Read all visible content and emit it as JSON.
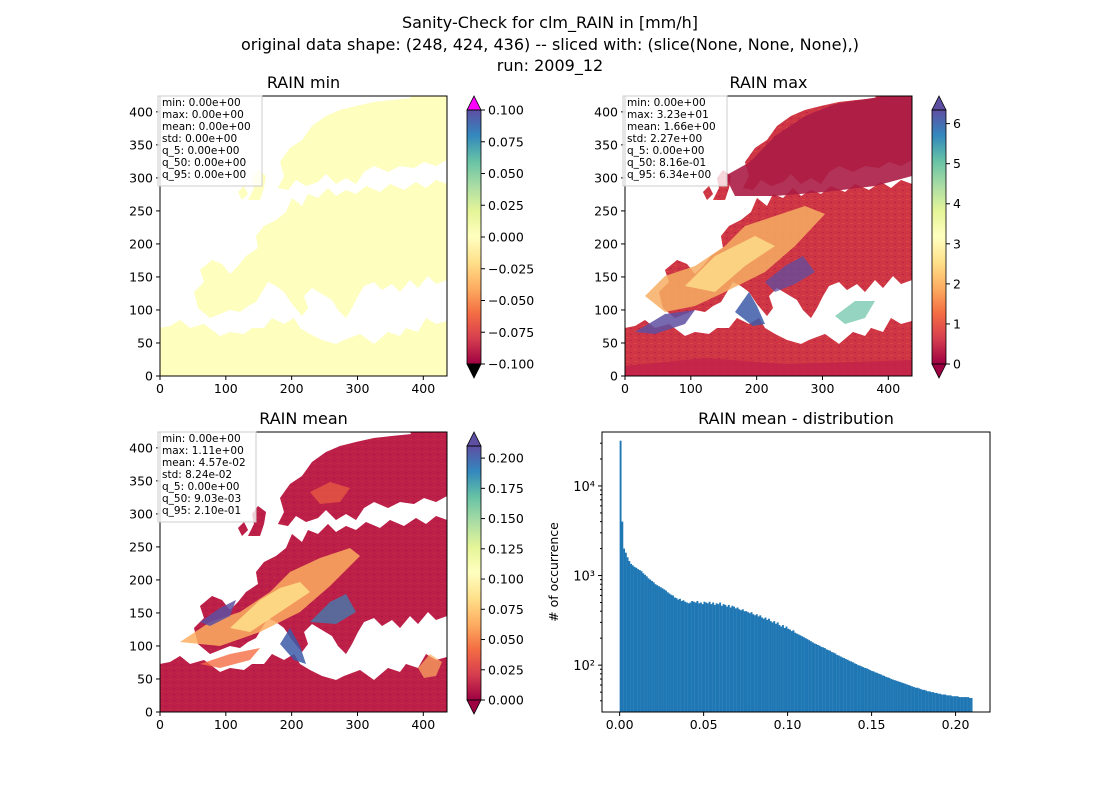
{
  "figure": {
    "suptitle_lines": [
      "Sanity-Check for clm_RAIN in [mm/h]",
      "original data shape: (248, 424, 436) -- sliced with: (slice(None, None, None),)",
      "run: 2009_12"
    ]
  },
  "chart_data": [
    {
      "type": "heatmap",
      "title": "RAIN min",
      "xlim": [
        0,
        436
      ],
      "ylim": [
        0,
        424
      ],
      "xticks": [
        0,
        100,
        200,
        300,
        400
      ],
      "yticks": [
        0,
        50,
        100,
        150,
        200,
        250,
        300,
        350,
        400
      ],
      "colormap": "Spectral",
      "uniform_color": "#fefebe",
      "stats": [
        "min: 0.00e+00",
        "max: 0.00e+00",
        "mean: 0.00e+00",
        "std: 0.00e+00",
        "q_5: 0.00e+00",
        "q_50: 0.00e+00",
        "q_95: 0.00e+00"
      ],
      "colorbar": {
        "range": [
          -0.1,
          0.1
        ],
        "ticks": [
          -0.1,
          -0.075,
          -0.05,
          -0.025,
          0.0,
          0.025,
          0.05,
          0.075,
          0.1
        ],
        "tick_labels": [
          "−0.100",
          "−0.075",
          "−0.050",
          "−0.025",
          "0.000",
          "0.025",
          "0.050",
          "0.075",
          "0.100"
        ],
        "extend_colors": {
          "over": "#ff00ff",
          "under": "#000000"
        }
      }
    },
    {
      "type": "heatmap",
      "title": "RAIN max",
      "xlim": [
        0,
        436
      ],
      "ylim": [
        0,
        424
      ],
      "xticks": [
        0,
        100,
        200,
        300,
        400
      ],
      "yticks": [
        0,
        50,
        100,
        150,
        200,
        250,
        300,
        350,
        400
      ],
      "colormap": "Spectral",
      "stats": [
        "min: 0.00e+00",
        "max: 3.23e+01",
        "mean: 1.66e+00",
        "std: 2.27e+00",
        "q_5: 0.00e+00",
        "q_50: 8.16e-01",
        "q_95: 6.34e+00"
      ],
      "colorbar": {
        "range": [
          0,
          6.34
        ],
        "ticks": [
          0,
          1,
          2,
          3,
          4,
          5,
          6
        ],
        "tick_labels": [
          "0",
          "1",
          "2",
          "3",
          "4",
          "5",
          "6"
        ],
        "extend_colors": {
          "over": "#5e4fa2",
          "under": "#9e0142"
        }
      }
    },
    {
      "type": "heatmap",
      "title": "RAIN mean",
      "xlim": [
        0,
        436
      ],
      "ylim": [
        0,
        424
      ],
      "xticks": [
        0,
        100,
        200,
        300,
        400
      ],
      "yticks": [
        0,
        50,
        100,
        150,
        200,
        250,
        300,
        350,
        400
      ],
      "colormap": "Spectral",
      "stats": [
        "min: 0.00e+00",
        "max: 1.11e+00",
        "mean: 4.57e-02",
        "std: 8.24e-02",
        "q_5: 0.00e+00",
        "q_50: 9.03e-03",
        "q_95: 2.10e-01"
      ],
      "colorbar": {
        "range": [
          0,
          0.21
        ],
        "ticks": [
          0.0,
          0.025,
          0.05,
          0.075,
          0.1,
          0.125,
          0.15,
          0.175,
          0.2
        ],
        "tick_labels": [
          "0.000",
          "0.025",
          "0.050",
          "0.075",
          "0.100",
          "0.125",
          "0.150",
          "0.175",
          "0.200"
        ],
        "extend_colors": {
          "over": "#5e4fa2",
          "under": "#9e0142"
        }
      }
    },
    {
      "type": "bar",
      "title": "RAIN mean - distribution",
      "ylabel": "# of occurrence",
      "yscale": "log",
      "xlim": [
        -0.0105,
        0.2205
      ],
      "ylim": [
        30,
        40000
      ],
      "xticks": [
        0.0,
        0.05,
        0.1,
        0.15,
        0.2
      ],
      "xtick_labels": [
        "0.00",
        "0.05",
        "0.10",
        "0.15",
        "0.20"
      ],
      "yticks": [
        100,
        1000,
        10000
      ],
      "ytick_labels": [
        "10²",
        "10³",
        "10⁴"
      ],
      "bar_color": "#1f77b4",
      "bin_range": [
        0,
        0.21
      ],
      "bins": 200,
      "values": [
        32000,
        4000,
        2000,
        1800,
        1600,
        1450,
        1350,
        1300,
        1250,
        1220,
        1180,
        1150,
        1120,
        1060,
        1020,
        980,
        930,
        900,
        870,
        840,
        800,
        780,
        760,
        740,
        720,
        700,
        680,
        650,
        630,
        610,
        600,
        570,
        560,
        540,
        550,
        520,
        530,
        510,
        500,
        490,
        500,
        520,
        510,
        500,
        520,
        490,
        500,
        480,
        510,
        500,
        490,
        510,
        480,
        500,
        470,
        490,
        480,
        500,
        460,
        480,
        470,
        450,
        470,
        440,
        460,
        450,
        430,
        440,
        420,
        410,
        420,
        400,
        400,
        390,
        380,
        390,
        370,
        360,
        370,
        350,
        360,
        340,
        330,
        340,
        320,
        330,
        310,
        300,
        310,
        290,
        300,
        280,
        270,
        280,
        260,
        270,
        255,
        250,
        240,
        245,
        230,
        225,
        220,
        215,
        210,
        205,
        200,
        195,
        190,
        185,
        180,
        175,
        172,
        168,
        165,
        160,
        158,
        155,
        150,
        147,
        145,
        140,
        138,
        135,
        130,
        128,
        125,
        122,
        120,
        117,
        115,
        112,
        110,
        108,
        105,
        103,
        100,
        99,
        97,
        95,
        93,
        92,
        90,
        88,
        86,
        85,
        83,
        82,
        80,
        79,
        77,
        76,
        74,
        73,
        72,
        70,
        69,
        68,
        67,
        66,
        65,
        64,
        63,
        62,
        61,
        60,
        59,
        58,
        57,
        56,
        56,
        55,
        54,
        53,
        53,
        52,
        51,
        51,
        50,
        50,
        49,
        49,
        48,
        48,
        47,
        47,
        47,
        46,
        46,
        46,
        45,
        45,
        45,
        45,
        44,
        44,
        44,
        44,
        44,
        44,
        43,
        43
      ]
    }
  ]
}
